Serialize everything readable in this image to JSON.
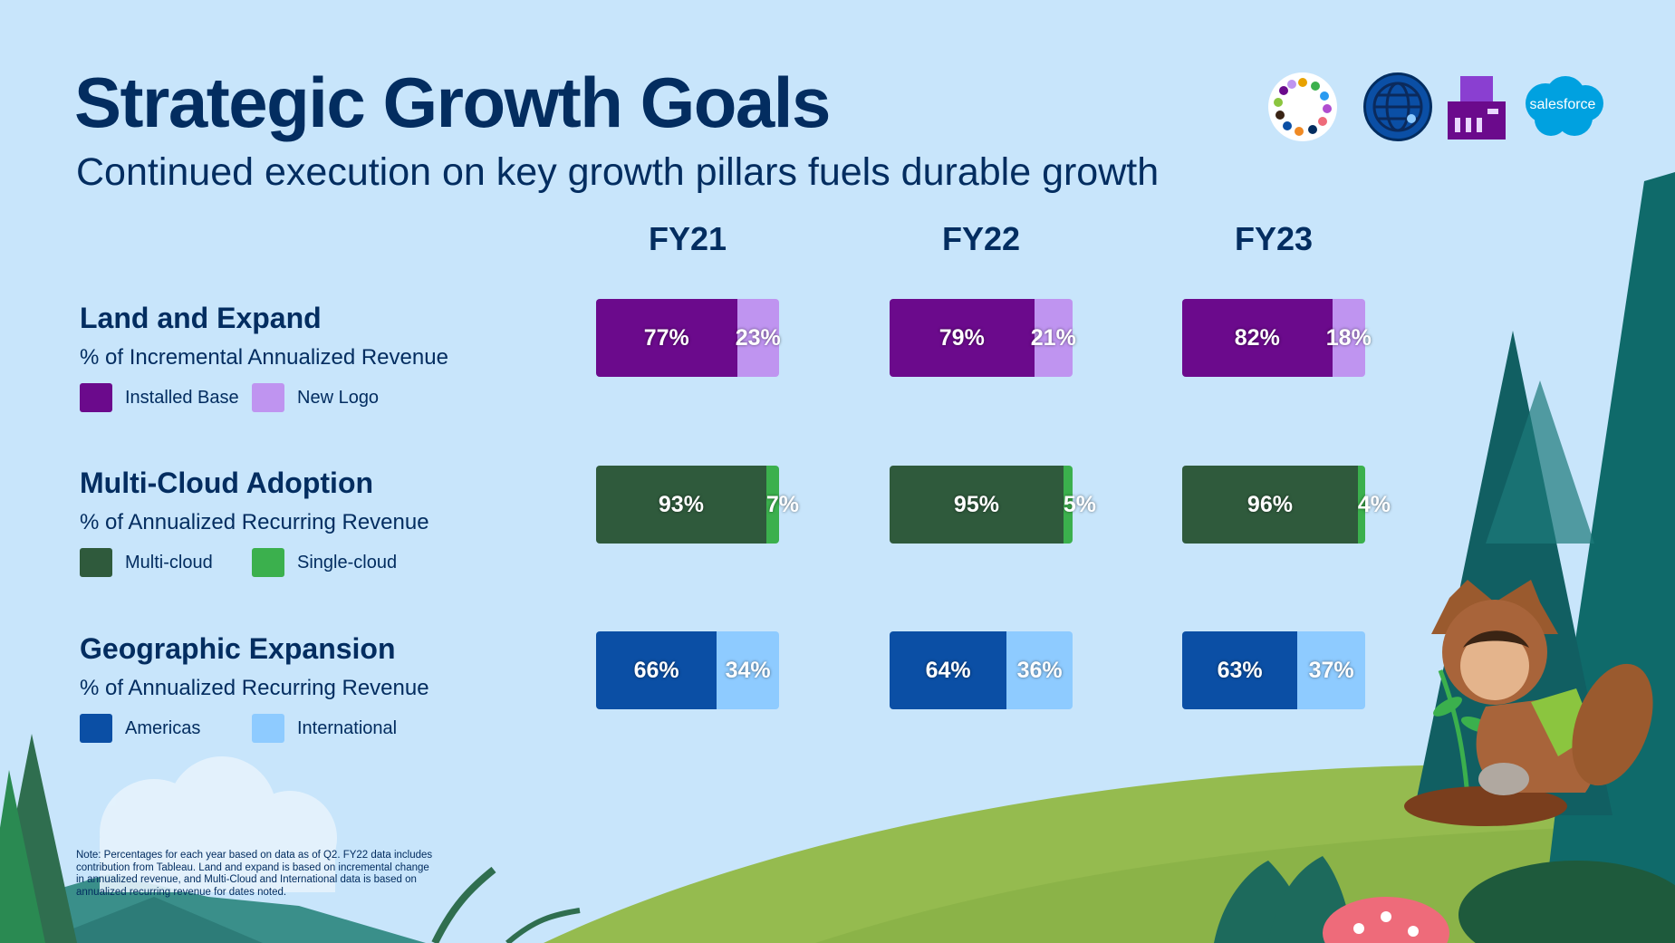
{
  "title": "Strategic Growth Goals",
  "subtitle": "Continued execution on key growth pillars fuels durable growth",
  "brand": {
    "wordmark": "salesforce"
  },
  "note": "Note: Percentages for each year based on data as of Q2. FY22 data includes contribution from Tableau. Land and expand is based on incremental change in annualized revenue, and Multi-Cloud and International data is based on annualized recurring revenue for dates noted.",
  "icons": [
    "tableau-ring-icon",
    "globe-icon",
    "building-icon",
    "salesforce-cloud-logo"
  ],
  "chart_data": {
    "type": "bar",
    "stacked": true,
    "orientation": "horizontal",
    "percent_scale": [
      0,
      100
    ],
    "categories": [
      "FY21",
      "FY22",
      "FY23"
    ],
    "metrics": [
      {
        "title": "Land and Expand",
        "subtitle": "% of Incremental Annualized Revenue",
        "series": [
          {
            "name": "Installed Base",
            "color": "#6b0a8c",
            "values": [
              77,
              79,
              82
            ],
            "labels": [
              "77%",
              "79%",
              "82%"
            ]
          },
          {
            "name": "New Logo",
            "color": "#bf94f0",
            "values": [
              23,
              21,
              18
            ],
            "labels": [
              "23%",
              "21%",
              "18%"
            ]
          }
        ]
      },
      {
        "title": "Multi-Cloud Adoption",
        "subtitle": "% of Annualized Recurring Revenue",
        "series": [
          {
            "name": "Multi-cloud",
            "color": "#2f5a3c",
            "values": [
              93,
              95,
              96
            ],
            "labels": [
              "93%",
              "95%",
              "96%"
            ]
          },
          {
            "name": "Single-cloud",
            "color": "#3bb04d",
            "values": [
              7,
              5,
              4
            ],
            "labels": [
              "7%",
              "5%",
              "4%"
            ]
          }
        ]
      },
      {
        "title": "Geographic Expansion",
        "subtitle": "% of Annualized Recurring Revenue",
        "series": [
          {
            "name": "Americas",
            "color": "#0b4fa5",
            "values": [
              66,
              64,
              63
            ],
            "labels": [
              "66%",
              "64%",
              "63%"
            ]
          },
          {
            "name": "International",
            "color": "#8ecbff",
            "values": [
              34,
              36,
              37
            ],
            "labels": [
              "34%",
              "36%",
              "37%"
            ]
          }
        ]
      }
    ]
  }
}
